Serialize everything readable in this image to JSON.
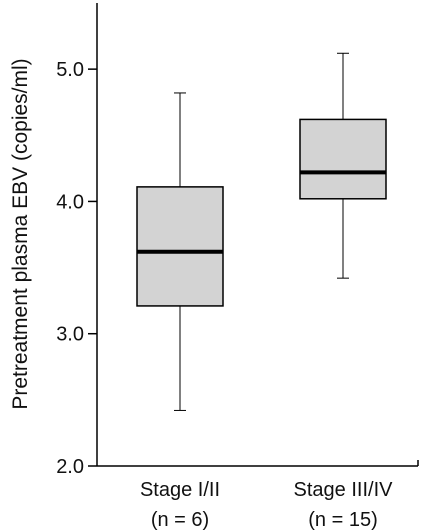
{
  "chart_data": {
    "type": "box",
    "title": "",
    "xlabel": "",
    "ylabel": "Pretreatment plasma EBV (copies/ml)",
    "ylim": [
      2.0,
      5.5
    ],
    "yticks": [
      "2.0",
      "3.0",
      "4.0",
      "5.0"
    ],
    "grid": false,
    "box_color": "#d3d3d3",
    "line_color": "#000000",
    "categories": [
      {
        "name_line1": "Stage I/II",
        "name_line2": "(n = 6)"
      },
      {
        "name_line1": "Stage III/IV",
        "name_line2": "(n = 15)"
      }
    ],
    "series": [
      {
        "whisker_low": 2.42,
        "q1": 3.21,
        "median": 3.62,
        "q3": 4.11,
        "whisker_high": 4.82
      },
      {
        "whisker_low": 3.42,
        "q1": 4.02,
        "median": 4.22,
        "q3": 4.62,
        "whisker_high": 5.12
      }
    ]
  }
}
